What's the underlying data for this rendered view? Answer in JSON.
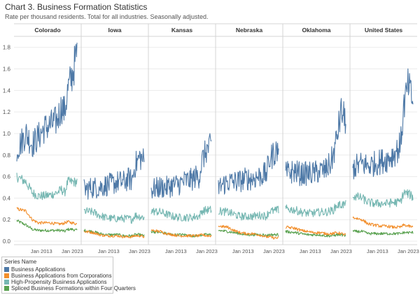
{
  "chart_data": {
    "type": "line",
    "title": "Chart 3. Business Formation Statistics",
    "subtitle": "Rate per thousand residents. Total for all industries. Seasonally adjusted.",
    "panels": [
      "Colorado",
      "Iowa",
      "Kansas",
      "Nebraska",
      "Oklahoma",
      "United States"
    ],
    "x_tick_labels": [
      "Jan 2013",
      "Jan 2023"
    ],
    "x_range": [
      2005,
      2024.5
    ],
    "ylim": [
      0,
      1.85
    ],
    "y_ticks": [
      "0.0",
      "0.2",
      "0.4",
      "0.6",
      "0.8",
      "1.0",
      "1.2",
      "1.4",
      "1.6",
      "1.8"
    ],
    "legend_title": "Series Name",
    "legend_position": "bottom-left",
    "grid": "horizontal",
    "series": [
      {
        "name": "Business Applications",
        "color": "#4e79a7"
      },
      {
        "name": "Business Applications from Corporations",
        "color": "#f28e2b"
      },
      {
        "name": "High-Propensity Business Applications",
        "color": "#76b7b2"
      },
      {
        "name": "Spliced Business Formations within Four Quarters",
        "color": "#59a14f"
      }
    ],
    "x": [
      2005,
      2008,
      2010,
      2012,
      2014,
      2016,
      2018,
      2019.5,
      2020.5,
      2021.5,
      2023,
      2024.5
    ],
    "values": {
      "Colorado": [
        [
          0.85,
          1.0,
          0.9,
          0.97,
          1.05,
          1.08,
          1.12,
          1.25,
          1.2,
          1.4,
          1.55,
          1.75
        ],
        [
          0.3,
          0.28,
          0.2,
          0.17,
          0.17,
          0.17,
          0.16,
          0.16,
          0.17,
          0.18,
          0.17,
          0.16
        ],
        [
          0.6,
          0.55,
          0.45,
          0.42,
          0.42,
          0.43,
          0.45,
          0.48,
          0.45,
          0.55,
          0.55,
          0.55
        ],
        [
          0.19,
          0.15,
          0.11,
          0.1,
          0.1,
          0.1,
          0.1,
          0.1,
          0.09,
          0.11,
          0.11,
          0.1
        ]
      ],
      "Iowa": [
        [
          0.48,
          0.5,
          0.5,
          0.52,
          0.53,
          0.55,
          0.55,
          0.58,
          0.56,
          0.7,
          0.78,
          0.75
        ],
        [
          0.09,
          0.08,
          0.06,
          0.05,
          0.05,
          0.05,
          0.04,
          0.04,
          0.04,
          0.05,
          0.05,
          0.04
        ],
        [
          0.28,
          0.27,
          0.24,
          0.22,
          0.21,
          0.21,
          0.21,
          0.21,
          0.2,
          0.24,
          0.23,
          0.22
        ],
        [
          0.1,
          0.09,
          0.07,
          0.06,
          0.06,
          0.06,
          0.05,
          0.05,
          0.05,
          0.06,
          0.06,
          0.05
        ]
      ],
      "Kansas": [
        [
          0.48,
          0.5,
          0.5,
          0.52,
          0.53,
          0.56,
          0.57,
          0.6,
          0.6,
          0.75,
          0.85,
          0.88
        ],
        [
          0.1,
          0.09,
          0.07,
          0.06,
          0.05,
          0.05,
          0.05,
          0.05,
          0.05,
          0.06,
          0.05,
          0.05
        ],
        [
          0.28,
          0.27,
          0.25,
          0.23,
          0.22,
          0.22,
          0.22,
          0.23,
          0.23,
          0.28,
          0.29,
          0.29
        ],
        [
          0.09,
          0.08,
          0.07,
          0.06,
          0.06,
          0.06,
          0.05,
          0.05,
          0.05,
          0.06,
          0.06,
          0.06
        ]
      ],
      "Nebraska": [
        [
          0.5,
          0.55,
          0.55,
          0.56,
          0.58,
          0.58,
          0.6,
          0.62,
          0.62,
          0.75,
          0.82,
          0.85
        ],
        [
          0.14,
          0.13,
          0.1,
          0.08,
          0.07,
          0.07,
          0.06,
          0.05,
          0.04,
          0.04,
          0.03,
          0.03
        ],
        [
          0.28,
          0.27,
          0.25,
          0.23,
          0.23,
          0.23,
          0.24,
          0.24,
          0.23,
          0.28,
          0.28,
          0.29
        ],
        [
          0.1,
          0.09,
          0.08,
          0.07,
          0.06,
          0.06,
          0.06,
          0.06,
          0.05,
          0.06,
          0.06,
          0.06
        ]
      ],
      "Oklahoma": [
        [
          0.63,
          0.65,
          0.62,
          0.63,
          0.63,
          0.65,
          0.66,
          0.72,
          0.8,
          0.95,
          1.2,
          1.12
        ],
        [
          0.13,
          0.12,
          0.1,
          0.09,
          0.08,
          0.08,
          0.07,
          0.07,
          0.07,
          0.08,
          0.07,
          0.06
        ],
        [
          0.3,
          0.29,
          0.27,
          0.26,
          0.26,
          0.27,
          0.27,
          0.28,
          0.29,
          0.33,
          0.34,
          0.34
        ],
        [
          0.09,
          0.08,
          0.07,
          0.06,
          0.06,
          0.06,
          0.05,
          0.05,
          0.05,
          0.06,
          0.06,
          0.05
        ]
      ],
      "United States": [
        [
          0.68,
          0.72,
          0.7,
          0.72,
          0.74,
          0.76,
          0.8,
          0.85,
          0.9,
          1.25,
          1.45,
          1.28
        ],
        [
          0.22,
          0.2,
          0.16,
          0.15,
          0.14,
          0.14,
          0.13,
          0.13,
          0.13,
          0.15,
          0.14,
          0.13
        ],
        [
          0.42,
          0.4,
          0.36,
          0.35,
          0.35,
          0.35,
          0.36,
          0.36,
          0.37,
          0.45,
          0.44,
          0.41
        ],
        [
          0.09,
          0.09,
          0.07,
          0.07,
          0.07,
          0.07,
          0.07,
          0.07,
          0.07,
          0.08,
          0.08,
          0.08
        ]
      ]
    }
  }
}
